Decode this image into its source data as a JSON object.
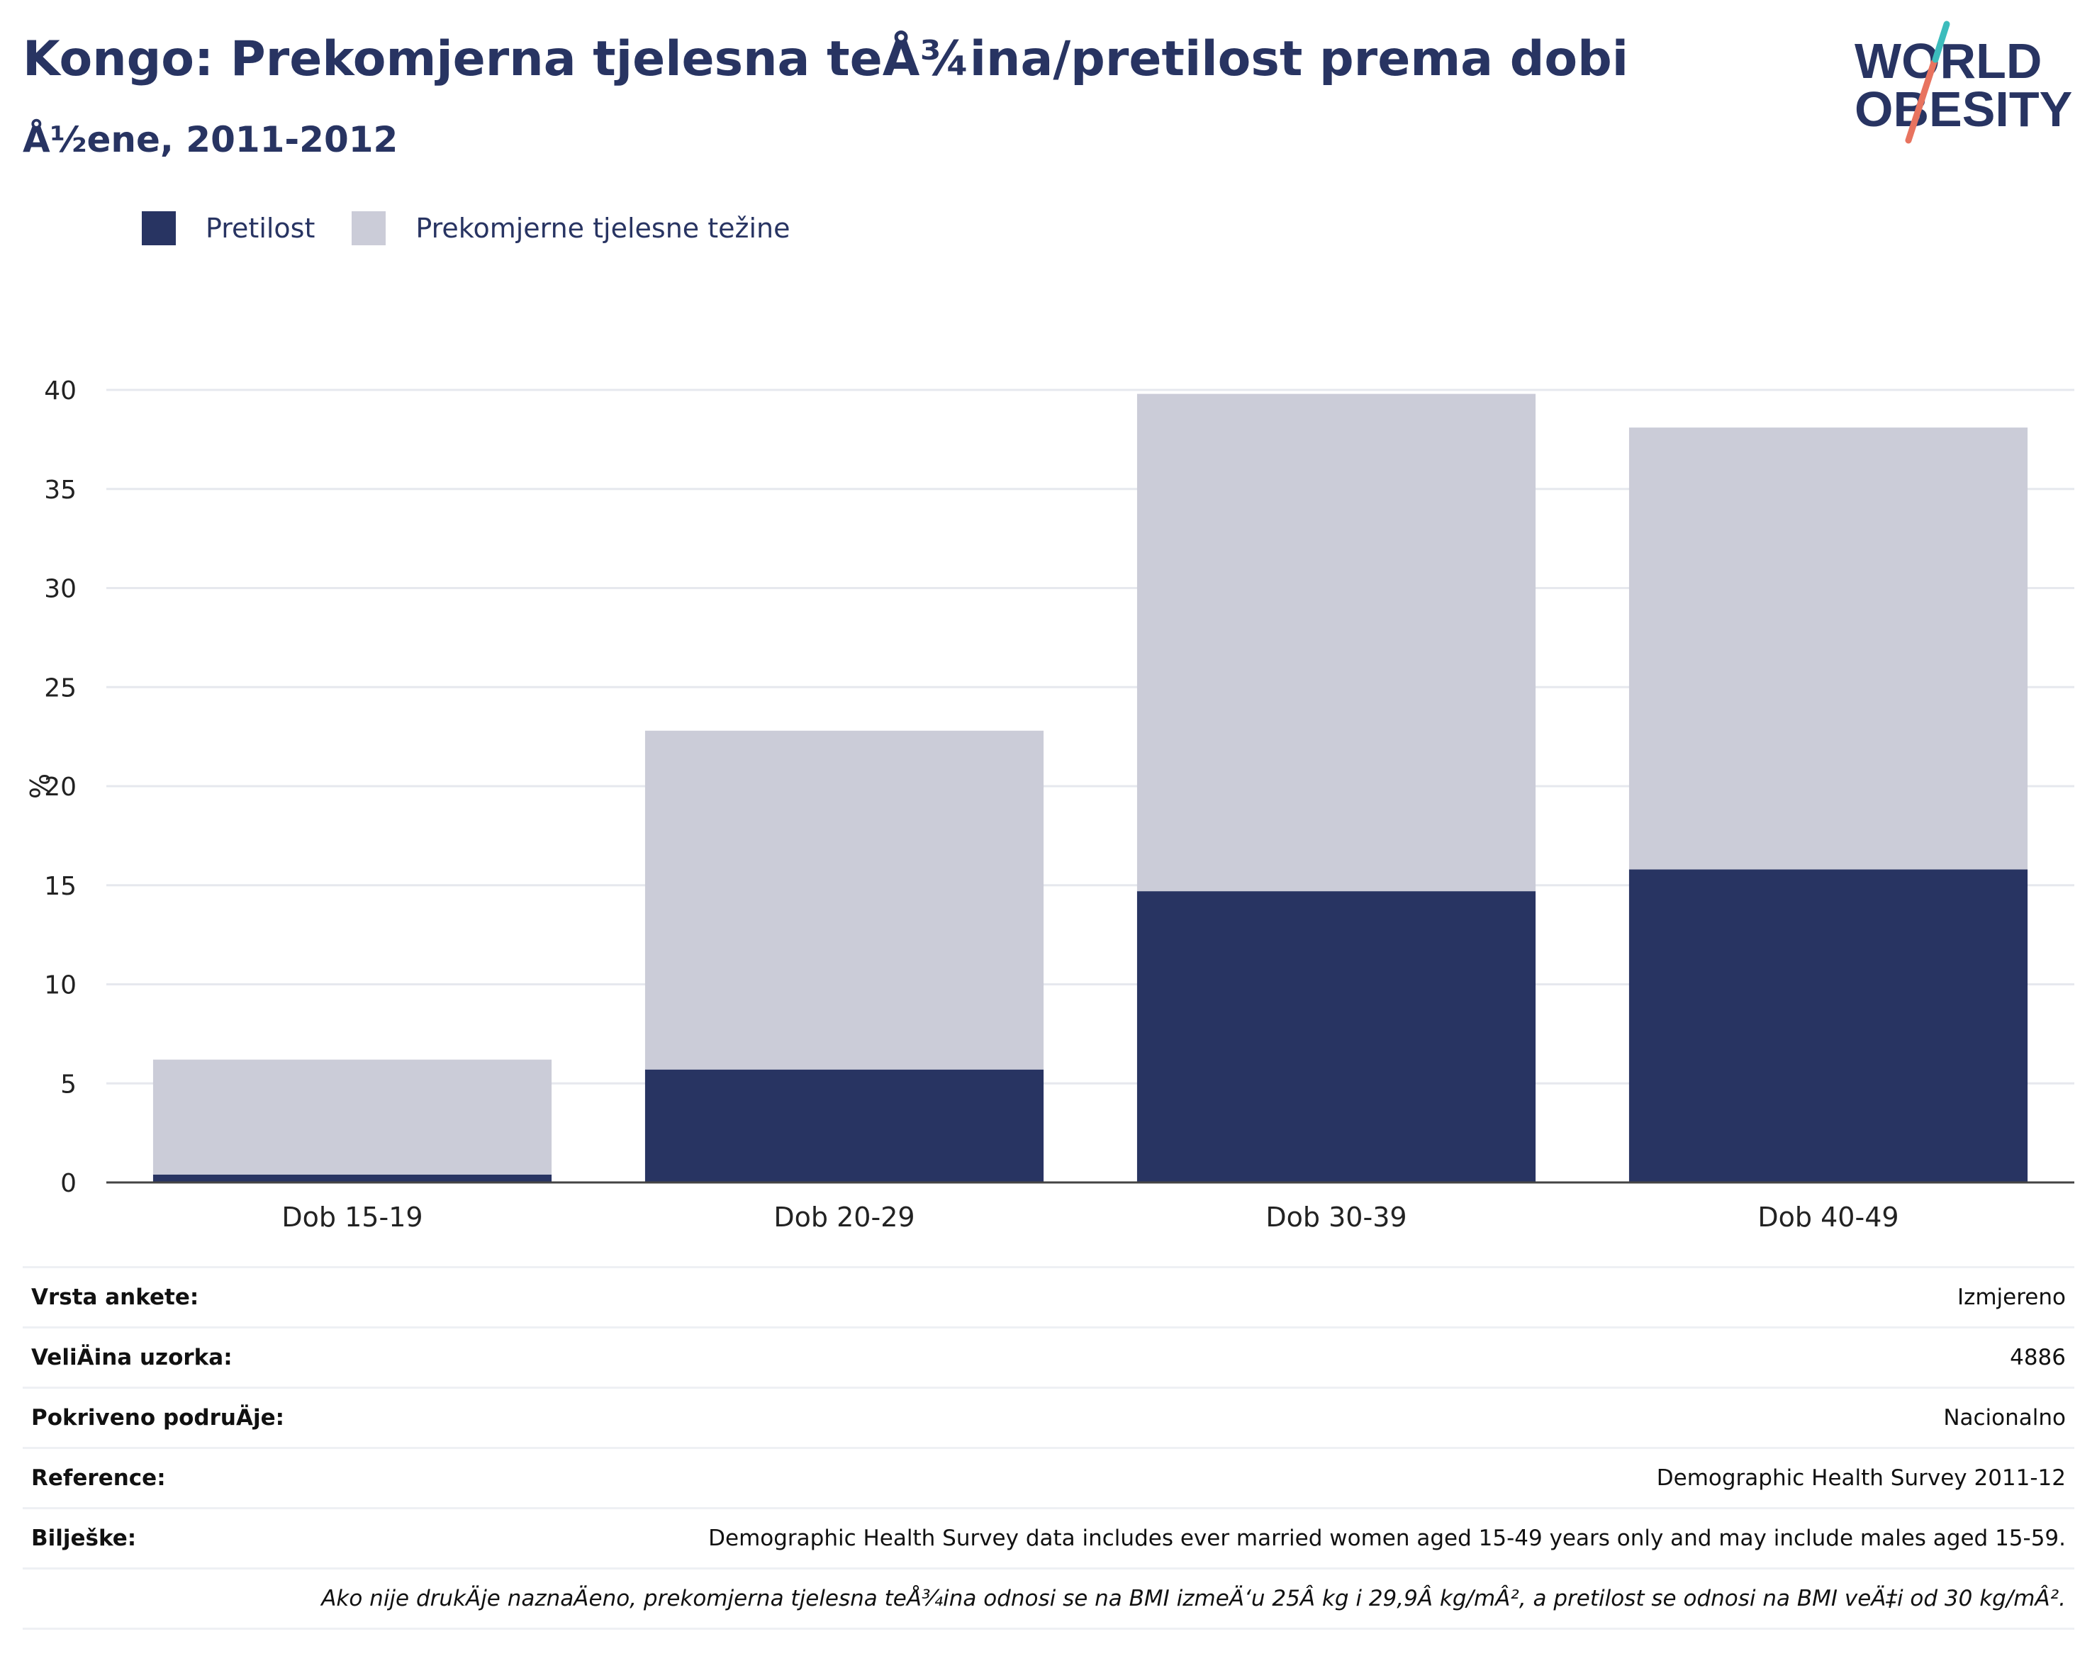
{
  "header": {
    "title": "Kongo: Prekomjerna tjelesna teÅ¾ina/pretilost prema dobi",
    "subtitle": "Å½ene, 2011-2012"
  },
  "logo": {
    "line1": "WORLD",
    "line2": "OBESITY"
  },
  "colors": {
    "obesity": "#283462",
    "overweight": "#cbccd8",
    "text": "#283462"
  },
  "legend": [
    {
      "label": "Pretilost",
      "color": "#283462"
    },
    {
      "label": "Prekomjerne tjelesne težine",
      "color": "#cbccd8"
    }
  ],
  "chart_data": {
    "type": "bar",
    "stacked": true,
    "categories": [
      "Dob 15-19",
      "Dob 20-29",
      "Dob 30-39",
      "Dob 40-49"
    ],
    "series": [
      {
        "name": "Pretilost",
        "values": [
          0.4,
          5.7,
          14.7,
          15.8
        ]
      },
      {
        "name": "Prekomjerne tjelesne težine",
        "values": [
          5.8,
          17.1,
          25.1,
          22.3
        ]
      }
    ],
    "ylabel": "%",
    "ylim": [
      0,
      40
    ],
    "yticks": [
      0,
      5,
      10,
      15,
      20,
      25,
      30,
      35,
      40
    ],
    "grid": true,
    "legend_position": "top-left"
  },
  "info": {
    "rows": [
      {
        "label": "Vrsta ankete:",
        "value": "Izmjereno"
      },
      {
        "label": "VeliÄ\u001dina uzorka:",
        "value": "4886"
      },
      {
        "label": "Pokriveno podruÄ\u001dje:",
        "value": "Nacionalno"
      },
      {
        "label": "Reference:",
        "value": "Demographic Health Survey 2011-12"
      },
      {
        "label": "Bilješke:",
        "value": "Demographic Health Survey data includes ever married women aged 15-49 years only and may include males aged 15-59."
      }
    ],
    "footnote": "Ako nije drukÄ\u001dje naznaÄ\u001deno, prekomjerna tjelesna teÅ¾ina odnosi se na BMI izmeÄ‘u 25Â kg i 29,9Â kg/mÂ², a pretilost se odnosi na BMI veÄ‡i od 30 kg/mÂ²."
  }
}
